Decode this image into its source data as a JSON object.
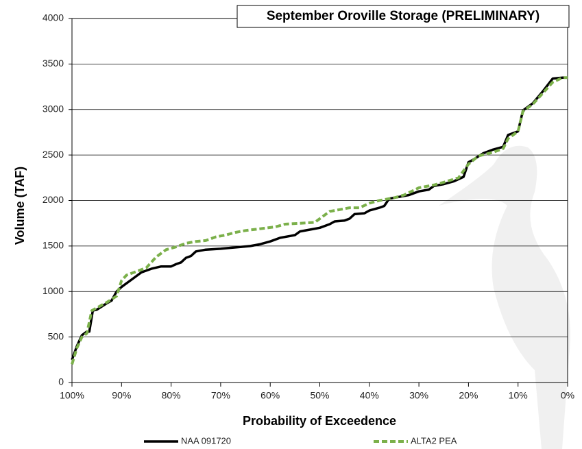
{
  "chart_data": {
    "type": "line",
    "title": "September Oroville Storage (PRELIMINARY)",
    "x_label": "Probability of Exceedence",
    "y_label": "Volume (TAF)",
    "xlim": [
      100,
      0
    ],
    "ylim": [
      0,
      4000
    ],
    "xticks": [
      {
        "value": 100,
        "label": "100%"
      },
      {
        "value": 90,
        "label": "90%"
      },
      {
        "value": 80,
        "label": "80%"
      },
      {
        "value": 70,
        "label": "70%"
      },
      {
        "value": 60,
        "label": "60%"
      },
      {
        "value": 50,
        "label": "50%"
      },
      {
        "value": 40,
        "label": "40%"
      },
      {
        "value": 30,
        "label": "30%"
      },
      {
        "value": 20,
        "label": "20%"
      },
      {
        "value": 10,
        "label": "10%"
      },
      {
        "value": 0,
        "label": "0%"
      }
    ],
    "yticks": [
      0,
      500,
      1000,
      1500,
      2000,
      2500,
      3000,
      3500,
      4000
    ],
    "grid": true,
    "legend": "bottom",
    "series": [
      {
        "name": "NAA 091720",
        "color": "#000000",
        "dash": "solid",
        "x": [
          100,
          99,
          98,
          97,
          96.5,
          95.8,
          95,
          93,
          92,
          91,
          90,
          88,
          86,
          84,
          82,
          80,
          79,
          78,
          77,
          76,
          75,
          73,
          70,
          68,
          66,
          64,
          62,
          60,
          58,
          56,
          55,
          54,
          52,
          50,
          48,
          47,
          45,
          44,
          43,
          41,
          40,
          38,
          37,
          36,
          34,
          32,
          30,
          28,
          27,
          25,
          23,
          21,
          20,
          19,
          17,
          15,
          13,
          12,
          10,
          9,
          7,
          5,
          3,
          1,
          0
        ],
        "values": [
          250,
          400,
          520,
          560,
          560,
          790,
          800,
          870,
          900,
          1000,
          1050,
          1130,
          1210,
          1250,
          1275,
          1275,
          1300,
          1320,
          1370,
          1390,
          1440,
          1460,
          1470,
          1480,
          1490,
          1500,
          1520,
          1550,
          1590,
          1610,
          1620,
          1660,
          1680,
          1700,
          1740,
          1770,
          1780,
          1800,
          1850,
          1860,
          1890,
          1920,
          1940,
          2020,
          2040,
          2060,
          2100,
          2120,
          2160,
          2180,
          2210,
          2260,
          2420,
          2450,
          2520,
          2560,
          2590,
          2720,
          2760,
          2990,
          3070,
          3200,
          3340,
          3350,
          3350
        ]
      },
      {
        "name": "ALTA2 PEA",
        "color": "#7bb04a",
        "dash": "dashed",
        "x": [
          100,
          99,
          98,
          97,
          96,
          95,
          93,
          91,
          90,
          89,
          87,
          85,
          83,
          81,
          79,
          77,
          75,
          73,
          71,
          69,
          67,
          65,
          62,
          59,
          57,
          54,
          51,
          50,
          48,
          46,
          44,
          42,
          40,
          38,
          35,
          33,
          30,
          27,
          25,
          22,
          20,
          18,
          15,
          13,
          12,
          10,
          9,
          7,
          5,
          3,
          1,
          0
        ],
        "values": [
          200,
          380,
          500,
          540,
          790,
          820,
          880,
          950,
          1120,
          1180,
          1220,
          1260,
          1380,
          1460,
          1490,
          1530,
          1550,
          1560,
          1600,
          1620,
          1650,
          1670,
          1690,
          1710,
          1740,
          1750,
          1760,
          1800,
          1880,
          1900,
          1920,
          1920,
          1970,
          2000,
          2030,
          2060,
          2140,
          2170,
          2200,
          2250,
          2400,
          2490,
          2530,
          2570,
          2680,
          2760,
          2980,
          3060,
          3180,
          3300,
          3350,
          3350
        ]
      }
    ]
  }
}
